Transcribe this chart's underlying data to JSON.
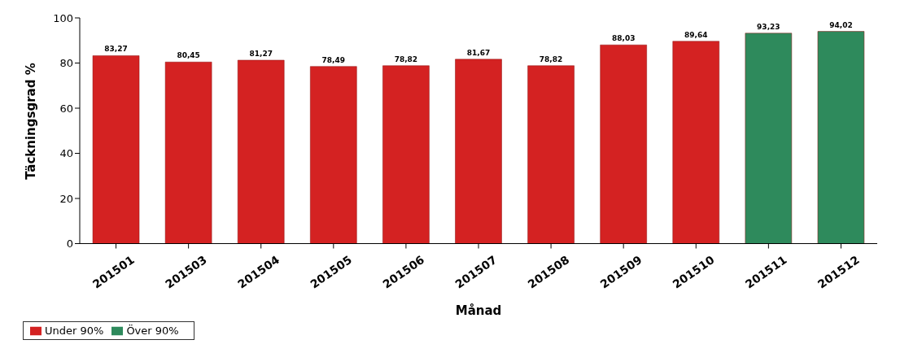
{
  "chart_data": {
    "type": "bar",
    "xlabel": "Månad",
    "ylabel": "Täckningsgrad %",
    "categories": [
      "201501",
      "201503",
      "201504",
      "201505",
      "201506",
      "201507",
      "201508",
      "201509",
      "201510",
      "201511",
      "201512"
    ],
    "series": [
      {
        "name": "Under 90%",
        "color": "#d42222",
        "values": [
          83.27,
          80.45,
          81.27,
          78.49,
          78.82,
          81.67,
          78.82,
          88.03,
          89.64,
          null,
          null
        ],
        "value_labels": [
          "83,27",
          "80,45",
          "81,27",
          "78,49",
          "78,82",
          "81,67",
          "78,82",
          "88,03",
          "89,64",
          null,
          null
        ]
      },
      {
        "name": "Över 90%",
        "color": "#2e8a5c",
        "values": [
          null,
          null,
          null,
          null,
          null,
          null,
          null,
          null,
          null,
          93.23,
          94.02
        ],
        "value_labels": [
          null,
          null,
          null,
          null,
          null,
          null,
          null,
          null,
          null,
          "93,23",
          "94,02"
        ]
      }
    ],
    "stacked": true,
    "ylim": [
      0,
      100
    ],
    "yticks": [
      0,
      20,
      40,
      60,
      80,
      100
    ],
    "grid": false,
    "legend": "bottom left"
  }
}
